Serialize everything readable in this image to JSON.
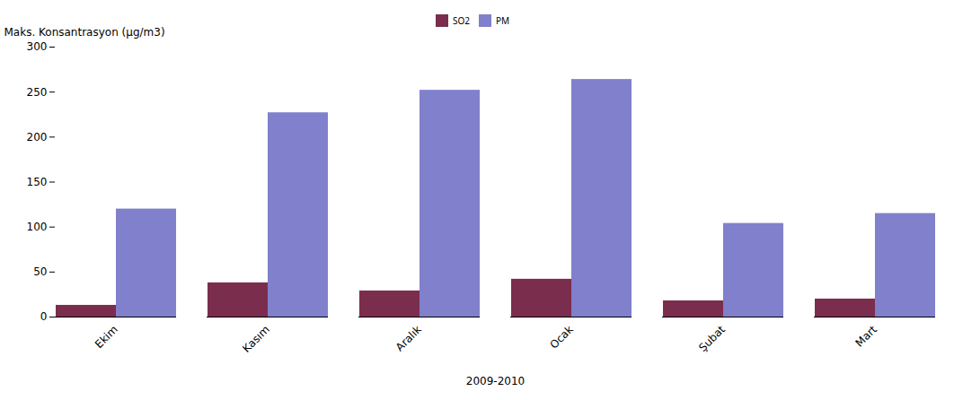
{
  "chart_data": {
    "type": "bar",
    "categories": [
      "Ekim",
      "Kasım",
      "Aralık",
      "Ocak",
      "Şubat",
      "Mart"
    ],
    "series": [
      {
        "name": "SO2",
        "color": "#7B2D4E",
        "values": [
          13,
          38,
          29,
          42,
          18,
          20
        ]
      },
      {
        "name": "PM",
        "color": "#8080CC",
        "values": [
          120,
          227,
          252,
          264,
          104,
          115
        ]
      }
    ],
    "xlabel": "2009-2010",
    "ylabel": "Maks. Konsantrasyon (µg/m3)",
    "ylim": [
      0,
      300
    ],
    "yticks": [
      0,
      50,
      100,
      150,
      200,
      250,
      300
    ],
    "grid": false,
    "legend": "top"
  }
}
